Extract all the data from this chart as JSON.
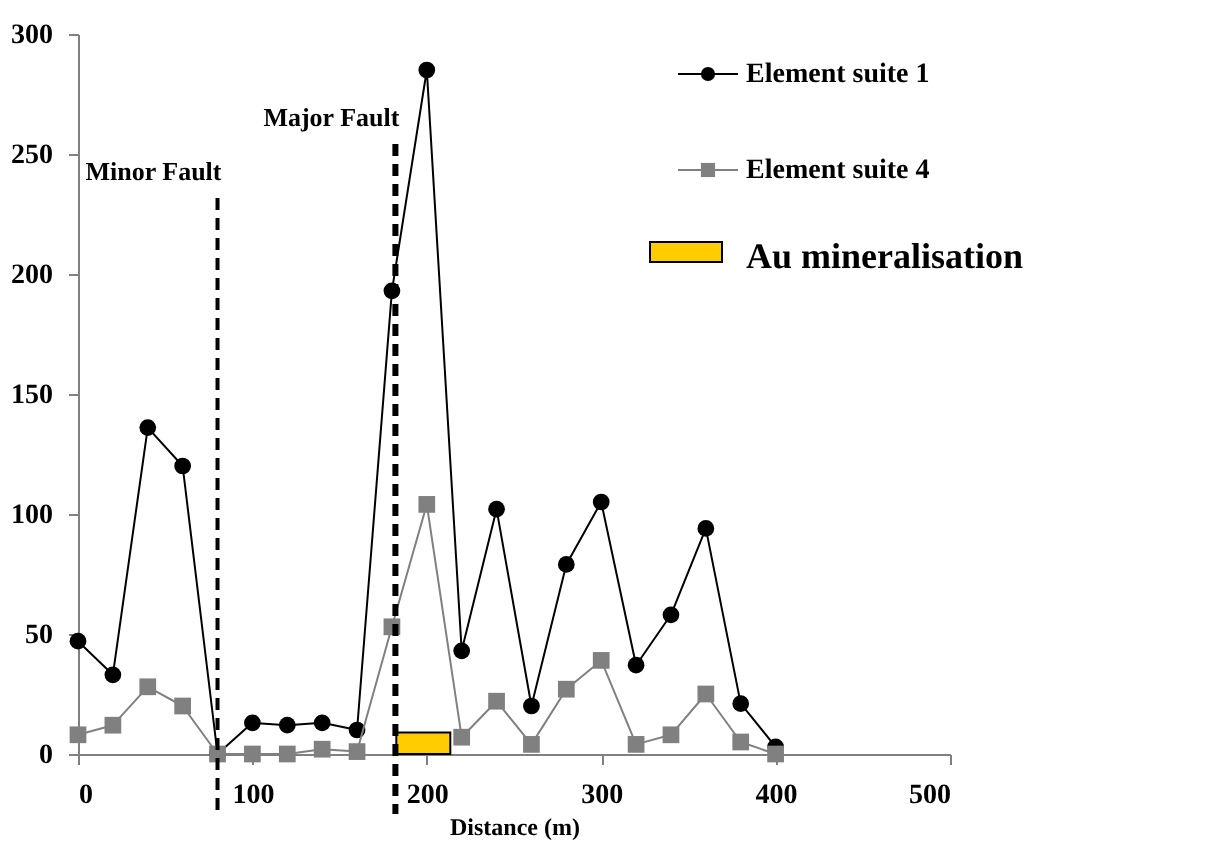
{
  "chart_data": {
    "type": "line",
    "xlabel": "Distance (m)",
    "x": [
      0,
      20,
      40,
      60,
      80,
      100,
      120,
      140,
      160,
      180,
      200,
      220,
      240,
      260,
      280,
      300,
      320,
      340,
      360,
      380,
      400
    ],
    "series": [
      {
        "name": "Element suite 1",
        "color": "#000000",
        "marker": "circle",
        "values": [
          47,
          33,
          136,
          120,
          0,
          13,
          12,
          13,
          10,
          193,
          285,
          43,
          102,
          20,
          79,
          105,
          37,
          58,
          94,
          21,
          3
        ]
      },
      {
        "name": "Element suite 4",
        "color": "#808080",
        "marker": "square",
        "values": [
          8,
          12,
          28,
          20,
          0,
          0,
          0,
          2,
          1,
          53,
          104,
          7,
          22,
          4,
          27,
          39,
          4,
          8,
          25,
          5,
          0
        ]
      },
      {
        "name": "Au mineralisation",
        "type": "bar",
        "color": "#ffcc00",
        "x": [
          198
        ],
        "values": [
          9
        ]
      }
    ],
    "ref_lines": [
      {
        "axis": "x",
        "value": 80,
        "label": "Minor Fault",
        "color": "#000000",
        "line_style": "dashed"
      },
      {
        "axis": "x",
        "value": 182,
        "label": "Major Fault",
        "color": "#000000",
        "line_style": "dashed"
      }
    ],
    "xlim": [
      0,
      500
    ],
    "xticks": [
      0,
      100,
      200,
      300,
      400,
      500
    ],
    "ylim": [
      0,
      300
    ],
    "yticks": [
      0,
      50,
      100,
      150,
      200,
      250,
      300
    ],
    "grid": false,
    "legend": "top right",
    "line_style": "solid"
  }
}
